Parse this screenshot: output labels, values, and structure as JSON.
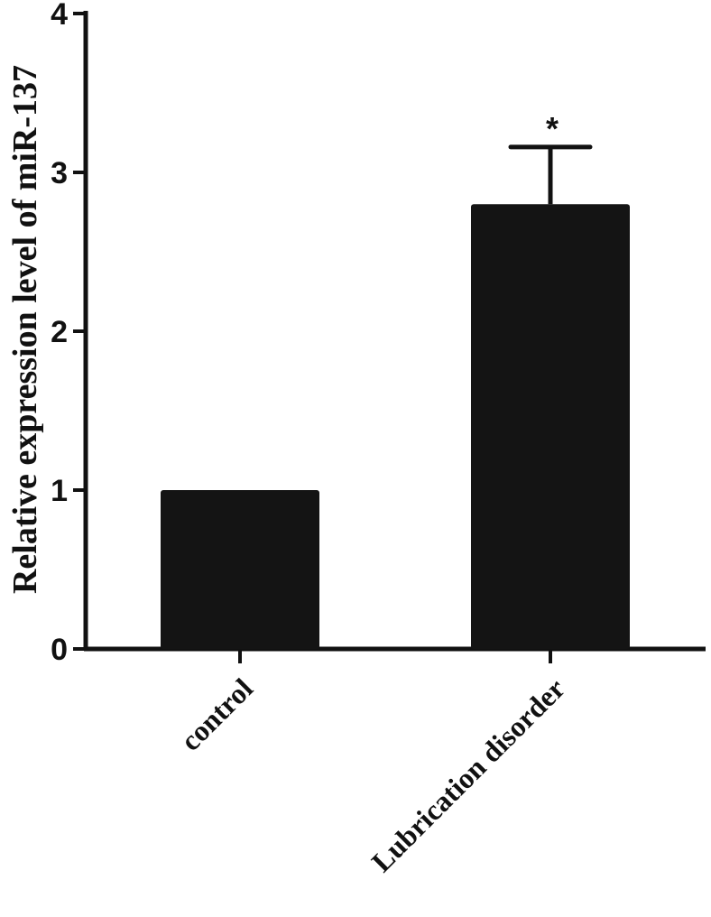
{
  "chart_data": {
    "type": "bar",
    "title": "",
    "xlabel": "",
    "ylabel": "Relative expression level of miR-137",
    "categories": [
      "control",
      "Lubrication disorder"
    ],
    "values": [
      1.0,
      2.8
    ],
    "error_upper": [
      0.0,
      0.36
    ],
    "significance": [
      "",
      "*"
    ],
    "ylim": [
      0,
      4
    ],
    "yticks": [
      "0",
      "1",
      "2",
      "3",
      "4"
    ],
    "bar_color": "#141414",
    "grid": false
  }
}
